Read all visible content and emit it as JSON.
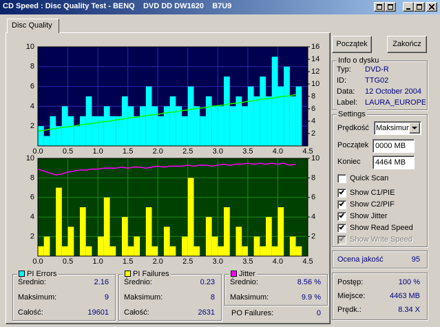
{
  "window": {
    "title": "CD Speed : Disc Quality Test - BENQ    DVD DD DW1620    B7U9"
  },
  "tab": "Disc Quality",
  "chart_data": [
    {
      "type": "combo",
      "background": "#000050",
      "grid_color": "#2a2ab0",
      "grid": true,
      "x": [
        0.0,
        0.1,
        0.2,
        0.3,
        0.4,
        0.5,
        0.6,
        0.7,
        0.8,
        0.9,
        1.0,
        1.1,
        1.2,
        1.3,
        1.4,
        1.5,
        1.6,
        1.7,
        1.8,
        1.9,
        2.0,
        2.1,
        2.2,
        2.3,
        2.4,
        2.5,
        2.6,
        2.7,
        2.8,
        2.9,
        3.0,
        3.1,
        3.2,
        3.3,
        3.4,
        3.5,
        3.6,
        3.7,
        3.8,
        3.9,
        4.0,
        4.1,
        4.2,
        4.3
      ],
      "xlim": [
        0,
        4.5
      ],
      "xticks": [
        {
          "value": 0,
          "label": "0.0"
        },
        0.5,
        {
          "value": 1,
          "label": "1.0"
        },
        1.5,
        {
          "value": 2,
          "label": "2.0"
        },
        2.5,
        {
          "value": 3,
          "label": "3.0"
        },
        3.5,
        {
          "value": 4,
          "label": "4.0"
        },
        4.5
      ],
      "ylim": [
        0,
        10
      ],
      "yticks": [
        2,
        4,
        6,
        8,
        10
      ],
      "y2lim": [
        0,
        16
      ],
      "y2ticks": [
        2,
        4,
        6,
        8,
        10,
        12,
        14,
        16
      ],
      "series": [
        {
          "type": "bar",
          "color": "#00ffff",
          "values": [
            2,
            1,
            3,
            2,
            4,
            3,
            2,
            3,
            5,
            3,
            3,
            4,
            3,
            3,
            5,
            4,
            3,
            4,
            6,
            4,
            3,
            4,
            5,
            4,
            3,
            6,
            4,
            3,
            5,
            4,
            4,
            7,
            4,
            5,
            4,
            6,
            5,
            7,
            5,
            9,
            6,
            8,
            5,
            6
          ]
        },
        {
          "type": "line",
          "axis": "y2",
          "color": "#00ff00",
          "values": [
            2.4,
            2.5,
            2.7,
            2.8,
            3.0,
            3.1,
            3.2,
            3.4,
            3.5,
            3.6,
            3.8,
            3.9,
            4.0,
            4.2,
            4.3,
            4.5,
            4.6,
            4.7,
            4.9,
            5.0,
            5.1,
            5.3,
            5.4,
            5.5,
            5.7,
            5.8,
            6.0,
            6.1,
            6.2,
            6.4,
            6.5,
            6.6,
            6.8,
            6.9,
            7.0,
            7.2,
            7.3,
            7.5,
            7.6,
            7.7,
            7.9,
            8.0,
            8.1,
            8.3
          ]
        }
      ]
    },
    {
      "type": "combo",
      "background": "#004000",
      "grid_color": "#1a8a1a",
      "grid": true,
      "x": [
        0.0,
        0.1,
        0.2,
        0.3,
        0.4,
        0.5,
        0.6,
        0.7,
        0.8,
        0.9,
        1.0,
        1.1,
        1.2,
        1.3,
        1.4,
        1.5,
        1.6,
        1.7,
        1.8,
        1.9,
        2.0,
        2.1,
        2.2,
        2.3,
        2.4,
        2.5,
        2.6,
        2.7,
        2.8,
        2.9,
        3.0,
        3.1,
        3.2,
        3.3,
        3.4,
        3.5,
        3.6,
        3.7,
        3.8,
        3.9,
        4.0,
        4.1,
        4.2,
        4.3
      ],
      "xlim": [
        0,
        4.5
      ],
      "xticks": [
        {
          "value": 0,
          "label": "0.0"
        },
        0.5,
        {
          "value": 1,
          "label": "1.0"
        },
        1.5,
        {
          "value": 2,
          "label": "2.0"
        },
        2.5,
        {
          "value": 3,
          "label": "3.0"
        },
        3.5,
        {
          "value": 4,
          "label": "4.0"
        },
        4.5
      ],
      "ylim": [
        0,
        10
      ],
      "yticks": [
        2,
        4,
        6,
        8,
        10
      ],
      "y2lim": [
        0,
        10
      ],
      "y2ticks": [
        2,
        4,
        6,
        8,
        10
      ],
      "series": [
        {
          "type": "bar",
          "color": "#ffff00",
          "values": [
            1,
            2,
            0,
            7,
            1,
            3,
            0,
            5,
            1,
            0,
            2,
            6,
            1,
            0,
            4,
            1,
            2,
            0,
            5,
            1,
            0,
            3,
            1,
            0,
            2,
            8,
            1,
            0,
            4,
            2,
            1,
            5,
            0,
            3,
            1,
            0,
            2,
            1,
            4,
            1,
            5,
            0,
            2,
            1
          ]
        },
        {
          "type": "line",
          "color": "#ff00ff",
          "values": [
            8.9,
            8.7,
            8.5,
            8.3,
            8.4,
            8.6,
            8.7,
            8.8,
            8.8,
            8.9,
            8.9,
            9.0,
            9.0,
            9.0,
            9.1,
            9.0,
            9.1,
            9.1,
            9.0,
            9.1,
            9.2,
            9.1,
            9.2,
            9.2,
            9.2,
            9.3,
            9.2,
            9.3,
            9.3,
            9.2,
            9.3,
            9.4,
            9.3,
            9.4,
            9.4,
            9.5,
            9.4,
            9.5,
            9.4,
            9.5,
            9.4,
            9.5,
            9.3,
            9.4
          ]
        }
      ]
    }
  ],
  "buttons": {
    "start": "Początek",
    "stop": "Zakończ"
  },
  "disc_info": {
    "title": "Info o dysku",
    "rows": [
      [
        "Typ:",
        "DVD-R"
      ],
      [
        "ID:",
        "TTG02"
      ],
      [
        "Data:",
        "12 October 2004"
      ],
      [
        "Label:",
        "LAURA_EUROPE_"
      ]
    ]
  },
  "settings": {
    "title": "Settings",
    "speed_label": "Prędkość",
    "speed_value": "Maksimum",
    "start_label": "Początek",
    "start_value": "0000 MB",
    "end_label": "Koniec",
    "end_value": "4464 MB",
    "checkboxes": [
      {
        "label": "Quick Scan",
        "checked": false,
        "disabled": false
      },
      {
        "label": "Show C1/PIE",
        "checked": true,
        "disabled": false
      },
      {
        "label": "Show C2/PIF",
        "checked": true,
        "disabled": false
      },
      {
        "label": "Show Jitter",
        "checked": true,
        "disabled": false
      },
      {
        "label": "Show Read Speed",
        "checked": true,
        "disabled": false
      },
      {
        "label": "Show Write Speed",
        "checked": true,
        "disabled": true
      }
    ]
  },
  "score": {
    "label": "Ocena jakość",
    "value": "95"
  },
  "progress": {
    "rows": [
      [
        "Postęp:",
        "100 %"
      ],
      [
        "Miejsce:",
        "4463 MB"
      ],
      [
        "Prędk.:",
        "8.34 X"
      ]
    ]
  },
  "stats": [
    {
      "title": "PI Errors",
      "color": "#00ffff",
      "rows": [
        [
          "Średnio:",
          "2.16"
        ],
        [
          "Maksimum:",
          "9"
        ],
        [
          "Całość:",
          "19601"
        ]
      ]
    },
    {
      "title": "PI Failures",
      "color": "#ffff00",
      "rows": [
        [
          "Średnio:",
          "0.23"
        ],
        [
          "Maksimum:",
          "8"
        ],
        [
          "Całość:",
          "2631"
        ]
      ]
    },
    {
      "title": "Jitter",
      "color": "#ff00ff",
      "rows": [
        [
          "Średnio:",
          "8.56 %"
        ],
        [
          "Maksimum:",
          "9.9 %"
        ]
      ]
    }
  ],
  "po_failures": {
    "label": "PO Failures:",
    "value": "0"
  }
}
